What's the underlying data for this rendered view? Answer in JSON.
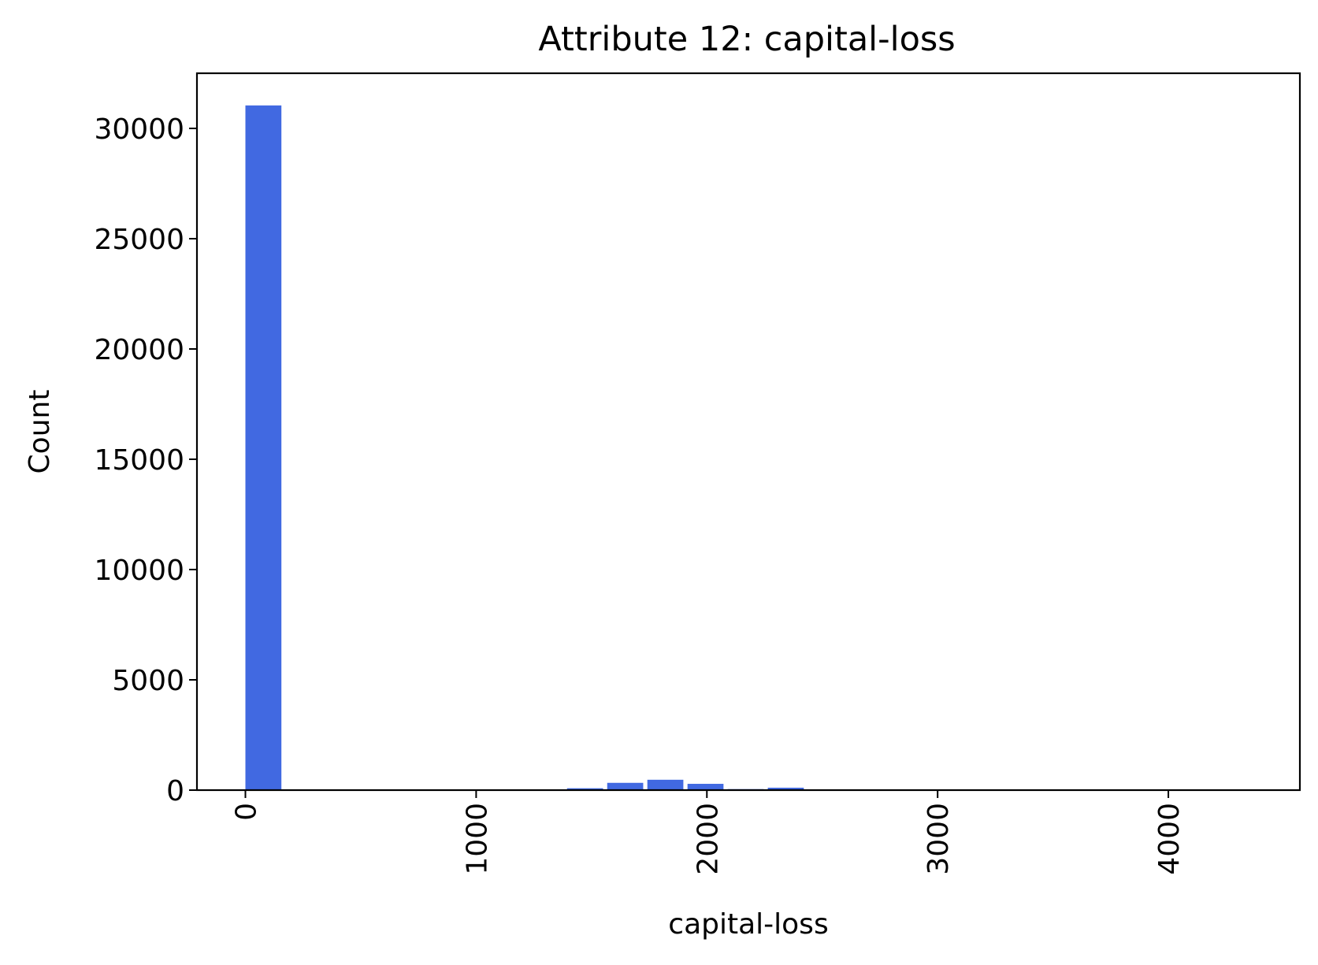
{
  "chart_data": {
    "type": "bar",
    "title": "Attribute 12: capital-loss",
    "xlabel": "capital-loss",
    "ylabel": "Count",
    "xlim": [
      -210,
      4570
    ],
    "ylim": [
      0,
      32500
    ],
    "x_ticks": [
      0,
      1000,
      2000,
      3000,
      4000
    ],
    "y_ticks": [
      0,
      5000,
      10000,
      15000,
      20000,
      25000,
      30000
    ],
    "bin_width": 174.2,
    "bins": [
      {
        "start": 0,
        "end": 156,
        "count": 31042
      },
      {
        "start": 1394,
        "end": 1550,
        "count": 85
      },
      {
        "start": 1568,
        "end": 1724,
        "count": 330
      },
      {
        "start": 1742,
        "end": 1898,
        "count": 470
      },
      {
        "start": 1916,
        "end": 2072,
        "count": 285
      },
      {
        "start": 2090,
        "end": 2246,
        "count": 45
      },
      {
        "start": 2264,
        "end": 2420,
        "count": 110
      }
    ],
    "bar_color": "#4169E1",
    "grid": false,
    "legend": "none",
    "x_tick_rotation": "vertical"
  }
}
